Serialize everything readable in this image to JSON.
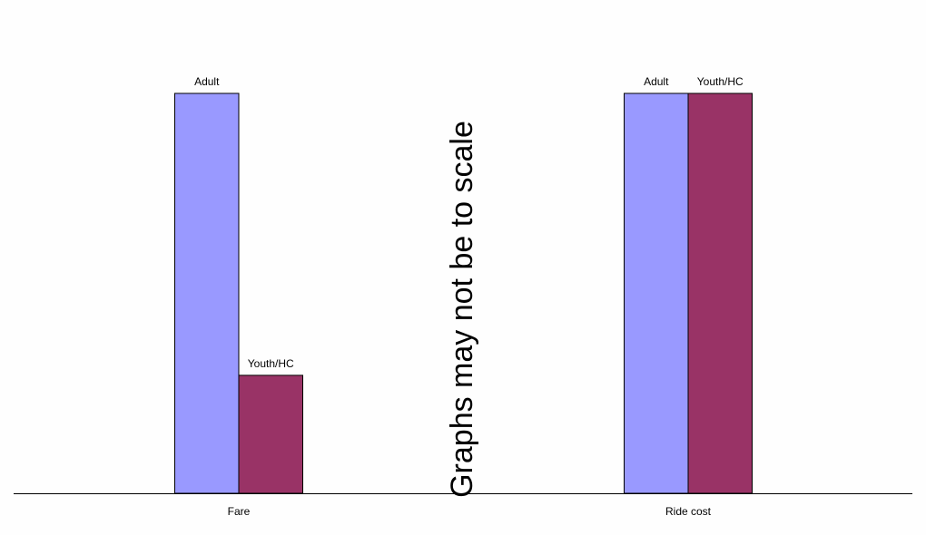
{
  "chart_data": {
    "type": "bar",
    "categories": [
      "Fare",
      "Ride cost"
    ],
    "series": [
      {
        "label": "Adult",
        "color": "#9999ff",
        "values": [
          100,
          100
        ]
      },
      {
        "label": "Youth/HC",
        "color": "#993366",
        "values": [
          29.5,
          100
        ]
      }
    ],
    "annotation": "Graphs may not be to scale",
    "ylim": [
      0,
      100
    ],
    "grid": false,
    "y_axis_visible": false
  }
}
